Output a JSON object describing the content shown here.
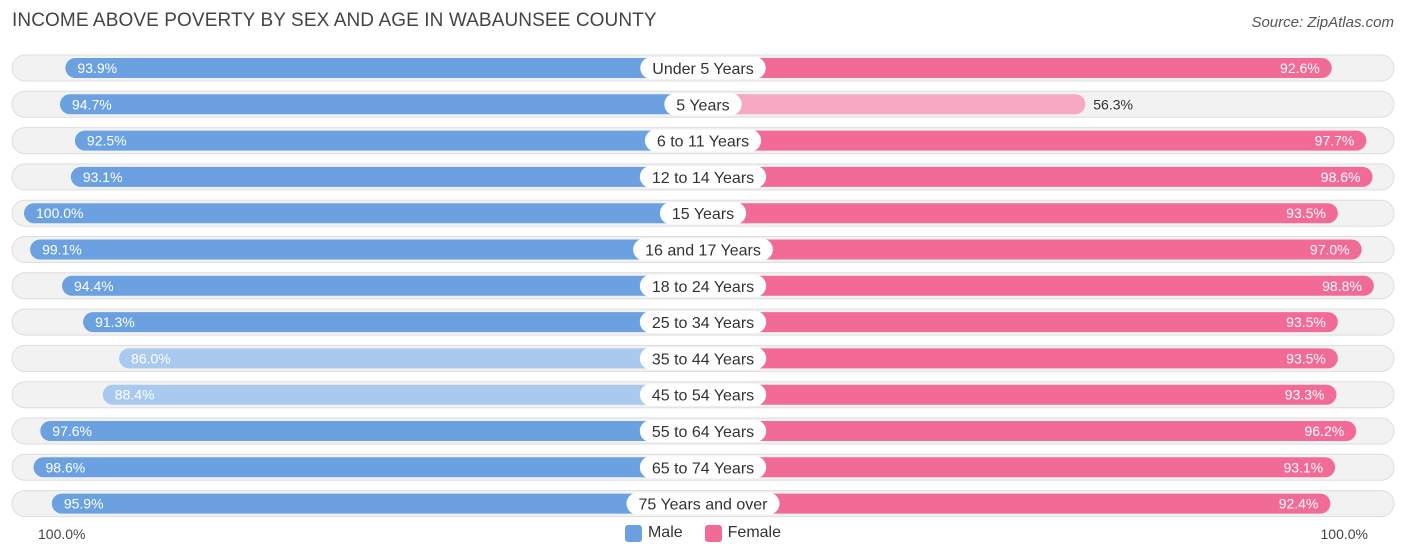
{
  "title": "INCOME ABOVE POVERTY BY SEX AND AGE IN WABAUNSEE COUNTY",
  "source": "Source: ZipAtlas.com",
  "colors": {
    "male": "#6ba1e0",
    "male_light": "#a9c9ee",
    "female": "#f26b96",
    "female_light": "#f7a8c2",
    "track": "#f2f2f2",
    "track_border": "#dddddd"
  },
  "legend": {
    "male": "Male",
    "female": "Female"
  },
  "axis": {
    "left_label": "100.0%",
    "right_label": "100.0%"
  },
  "chart_data": {
    "type": "bar",
    "orientation": "horizontal-diverging",
    "title": "INCOME ABOVE POVERTY BY SEX AND AGE IN WABAUNSEE COUNTY",
    "xlim": [
      0,
      100
    ],
    "unit": "%",
    "categories": [
      "Under 5 Years",
      "5 Years",
      "6 to 11 Years",
      "12 to 14 Years",
      "15 Years",
      "16 and 17 Years",
      "18 to 24 Years",
      "25 to 34 Years",
      "35 to 44 Years",
      "45 to 54 Years",
      "55 to 64 Years",
      "65 to 74 Years",
      "75 Years and over"
    ],
    "series": [
      {
        "name": "Male",
        "side": "left",
        "values": [
          93.9,
          94.7,
          92.5,
          93.1,
          100.0,
          99.1,
          94.4,
          91.3,
          86.0,
          88.4,
          97.6,
          98.6,
          95.9
        ],
        "labels": [
          "93.9%",
          "94.7%",
          "92.5%",
          "93.1%",
          "100.0%",
          "99.1%",
          "94.4%",
          "91.3%",
          "86.0%",
          "88.4%",
          "97.6%",
          "98.6%",
          "95.9%"
        ]
      },
      {
        "name": "Female",
        "side": "right",
        "values": [
          92.6,
          56.3,
          97.7,
          98.6,
          93.5,
          97.0,
          98.8,
          93.5,
          93.5,
          93.3,
          96.2,
          93.1,
          92.4
        ],
        "labels": [
          "92.6%",
          "56.3%",
          "97.7%",
          "98.6%",
          "93.5%",
          "97.0%",
          "98.8%",
          "93.5%",
          "93.5%",
          "93.3%",
          "96.2%",
          "93.1%",
          "92.4%"
        ]
      }
    ]
  }
}
